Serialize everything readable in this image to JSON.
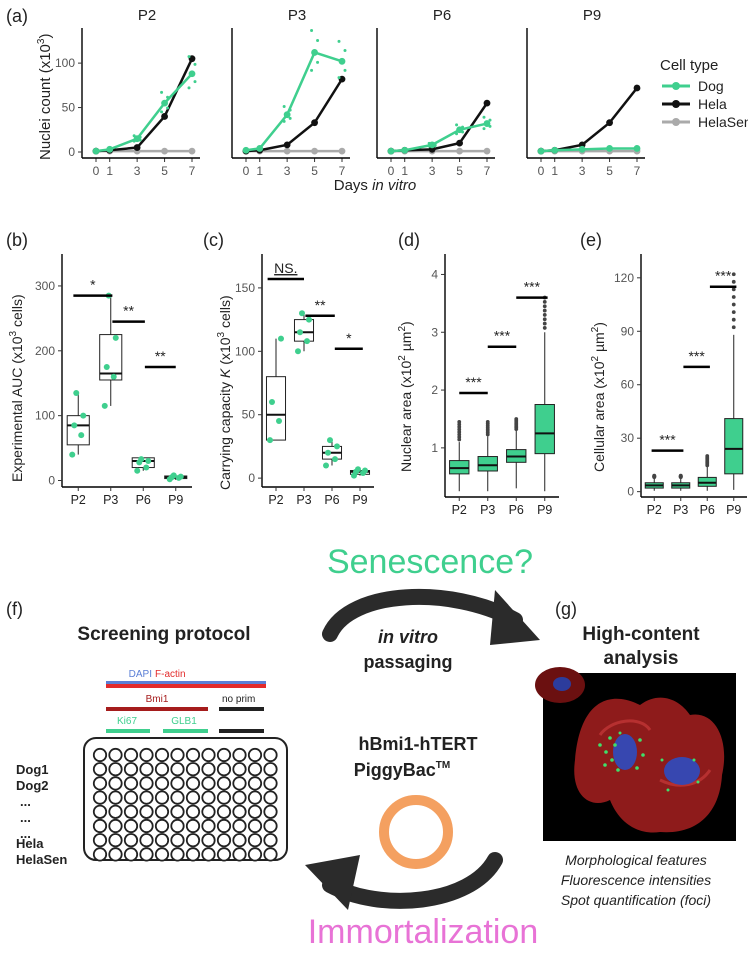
{
  "colors": {
    "dog": "#3fcf8e",
    "hela": "#111111",
    "helasen": "#aaaaaa",
    "red": "#e32b2b",
    "blue": "#5b7fd6",
    "darkred": "#a51c1c",
    "orange": "#f4a060",
    "pink": "#e873d6"
  },
  "panel_a": {
    "label": "(a)",
    "ylabel": "Nuclei count (x10",
    "ylabel_sup": "3",
    "ylabel_end": ")",
    "xlabel_pre": "Days ",
    "xlabel_it": "in vitro",
    "legend_title": "Cell type",
    "legend": [
      "Dog",
      "Hela",
      "HelaSen"
    ]
  },
  "panel_b": {
    "label": "(b)",
    "ylabel": "Experimental AUC (x10",
    "ylabel_sup": "3",
    "ylabel_end": " cells)",
    "sig": [
      "*",
      "**",
      "**"
    ]
  },
  "panel_c": {
    "label": "(c)",
    "ylabel_pre": "Carrying capacity ",
    "ylabel_it": "K",
    "ylabel": " (x10",
    "ylabel_sup": "3",
    "ylabel_end": " cells)",
    "sig": [
      "NS.",
      "**",
      "*"
    ]
  },
  "panel_d": {
    "label": "(d)",
    "ylabel": "Nuclear area (x10",
    "ylabel_sup": "2",
    "ylabel_mid": " µm",
    "ylabel_sup2": "2",
    "ylabel_end": ")",
    "sig": [
      "***",
      "***",
      "***"
    ]
  },
  "panel_e": {
    "label": "(e)",
    "ylabel": "Cellular area (x10",
    "ylabel_sup": "2",
    "ylabel_mid": " µm",
    "ylabel_sup2": "2",
    "ylabel_end": ")",
    "sig": [
      "***",
      "***",
      "***"
    ]
  },
  "panel_f": {
    "label": "(f)",
    "title": "Screening protocol",
    "bars": {
      "dapi": "DAPI",
      "factin": "F-actin",
      "bmi1": "Bmi1",
      "noprim": "no prim",
      "ki67": "Ki67",
      "glb1": "GLB1"
    },
    "rows": [
      "Dog1",
      "Dog2",
      "...",
      "...",
      "...",
      "Hela",
      "HelaSen"
    ]
  },
  "panel_g": {
    "label": "(g)",
    "title1": "High-content",
    "title2": "analysis",
    "features": [
      "Morphological features",
      "Fluorescence intensities",
      "Spot quantification (foci)"
    ]
  },
  "center": {
    "senescence": "Senescence?",
    "passaging_it": "in vitro",
    "passaging": "passaging",
    "construct1": "hBmi1-hTERT",
    "construct2": "PiggyBac",
    "construct_tm": "TM",
    "immortalization": "Immortalization"
  },
  "chart_data": [
    {
      "type": "line",
      "panel": "a",
      "facets": [
        "P2",
        "P3",
        "P6",
        "P9"
      ],
      "x": [
        0,
        1,
        3,
        5,
        7
      ],
      "ylim": [
        0,
        135
      ],
      "yticks": [
        0,
        50,
        100
      ],
      "series": [
        {
          "name": "Dog",
          "values_by_facet": [
            [
              1,
              3,
              15,
              55,
              88
            ],
            [
              2,
              4,
              42,
              112,
              102
            ],
            [
              1,
              2,
              8,
              25,
              32
            ],
            [
              1,
              2,
              3,
              4,
              4
            ]
          ]
        },
        {
          "name": "Hela",
          "values_by_facet": [
            [
              1,
              2,
              5,
              40,
              105
            ],
            [
              1,
              2,
              8,
              33,
              82
            ],
            [
              1,
              2,
              3,
              10,
              55
            ],
            [
              1,
              2,
              8,
              33,
              72
            ]
          ]
        },
        {
          "name": "HelaSen",
          "values_by_facet": [
            [
              1,
              1,
              1,
              1,
              1
            ],
            [
              1,
              1,
              1,
              1,
              1
            ],
            [
              1,
              1,
              1,
              1,
              1
            ],
            [
              1,
              1,
              1,
              1,
              1
            ]
          ]
        }
      ]
    },
    {
      "type": "box",
      "panel": "b",
      "categories": [
        "P2",
        "P3",
        "P6",
        "P9"
      ],
      "yticks": [
        0,
        100,
        200,
        300
      ],
      "ylim": [
        -10,
        340
      ],
      "boxes": [
        {
          "q1": 55,
          "median": 85,
          "q3": 100,
          "min": 40,
          "max": 135
        },
        {
          "q1": 155,
          "median": 165,
          "q3": 225,
          "min": 115,
          "max": 285
        },
        {
          "q1": 20,
          "median": 30,
          "q3": 35,
          "min": 15,
          "max": 35
        },
        {
          "q1": 3,
          "median": 5,
          "q3": 7,
          "min": 1,
          "max": 8
        }
      ],
      "points": [
        [
          40,
          70,
          85,
          100,
          135
        ],
        [
          115,
          160,
          175,
          220,
          285
        ],
        [
          15,
          20,
          28,
          30,
          33
        ],
        [
          2,
          4,
          5,
          6,
          8
        ]
      ]
    },
    {
      "type": "box",
      "panel": "c",
      "categories": [
        "P2",
        "P3",
        "P6",
        "P9"
      ],
      "yticks": [
        0,
        50,
        100,
        150
      ],
      "ylim": [
        -7,
        172
      ],
      "boxes": [
        {
          "q1": 30,
          "median": 50,
          "q3": 80,
          "min": 30,
          "max": 110
        },
        {
          "q1": 108,
          "median": 115,
          "q3": 125,
          "min": 100,
          "max": 130
        },
        {
          "q1": 15,
          "median": 20,
          "q3": 25,
          "min": 10,
          "max": 30
        },
        {
          "q1": 3,
          "median": 5,
          "q3": 6,
          "min": 2,
          "max": 8
        }
      ],
      "points": [
        [
          30,
          45,
          60,
          110
        ],
        [
          100,
          108,
          115,
          125,
          130
        ],
        [
          10,
          15,
          20,
          25,
          30
        ],
        [
          2,
          4,
          5,
          6,
          7
        ]
      ]
    },
    {
      "type": "box",
      "panel": "d",
      "categories": [
        "P2",
        "P3",
        "P6",
        "P9"
      ],
      "yticks": [
        1,
        2,
        3,
        4
      ],
      "ylim": [
        0.15,
        4.25
      ],
      "boxes": [
        {
          "q1": 0.55,
          "median": 0.65,
          "q3": 0.78,
          "min": 0.25,
          "max": 1.1
        },
        {
          "q1": 0.6,
          "median": 0.7,
          "q3": 0.85,
          "min": 0.25,
          "max": 1.2
        },
        {
          "q1": 0.75,
          "median": 0.85,
          "q3": 0.97,
          "min": 0.3,
          "max": 1.3
        },
        {
          "q1": 0.9,
          "median": 1.25,
          "q3": 1.75,
          "min": 0.25,
          "max": 3.0
        }
      ],
      "outliers_max": [
        1.45,
        1.45,
        1.5,
        3.6
      ]
    },
    {
      "type": "box",
      "panel": "e",
      "categories": [
        "P2",
        "P3",
        "P6",
        "P9"
      ],
      "yticks": [
        0,
        30,
        60,
        90,
        120
      ],
      "ylim": [
        -3,
        130
      ],
      "boxes": [
        {
          "q1": 2,
          "median": 3.5,
          "q3": 5,
          "min": 0.5,
          "max": 8
        },
        {
          "q1": 2,
          "median": 3.5,
          "q3": 5,
          "min": 0.5,
          "max": 8
        },
        {
          "q1": 3,
          "median": 5,
          "q3": 8,
          "min": 0.5,
          "max": 14
        },
        {
          "q1": 10,
          "median": 24,
          "q3": 41,
          "min": 1,
          "max": 88
        }
      ],
      "outliers_max": [
        9,
        9,
        20,
        122
      ]
    }
  ]
}
